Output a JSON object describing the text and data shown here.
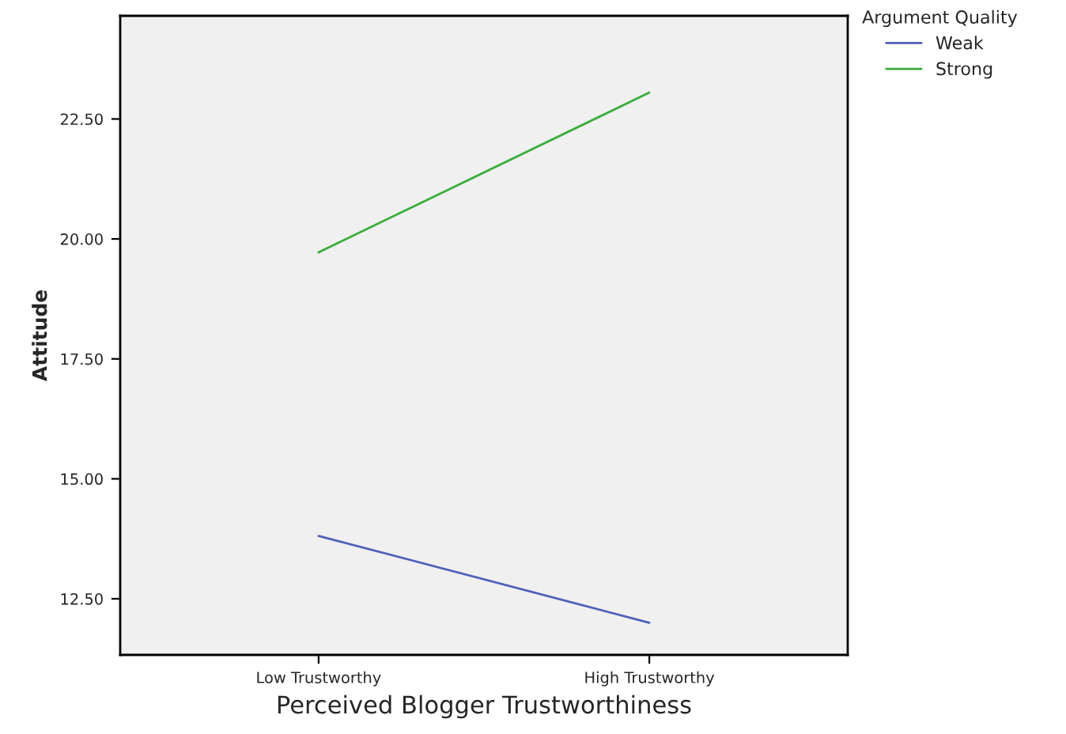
{
  "chart_data": {
    "type": "line",
    "xlabel": "Perceived Blogger Trustworthiness",
    "ylabel": "Attitude",
    "legend_title": "Argument Quality",
    "categories": [
      "Low Trustworthy",
      "High Trustworthy"
    ],
    "series": [
      {
        "name": "Weak",
        "color": "#5060b8",
        "values": [
          13.81,
          12.0
        ]
      },
      {
        "name": "Strong",
        "color": "#3cac3c",
        "values": [
          19.72,
          23.05
        ]
      }
    ],
    "ylim": [
      11.33,
      24.65
    ],
    "yticks": [
      {
        "value": 12.5,
        "label": "12.50"
      },
      {
        "value": 15,
        "label": "15.00"
      },
      {
        "value": 17.5,
        "label": "17.50"
      },
      {
        "value": 20,
        "label": "20.00"
      },
      {
        "value": 22.5,
        "label": "22.50"
      }
    ],
    "grid": false,
    "legend": "top right",
    "marker": "none",
    "line_style": "solid"
  }
}
